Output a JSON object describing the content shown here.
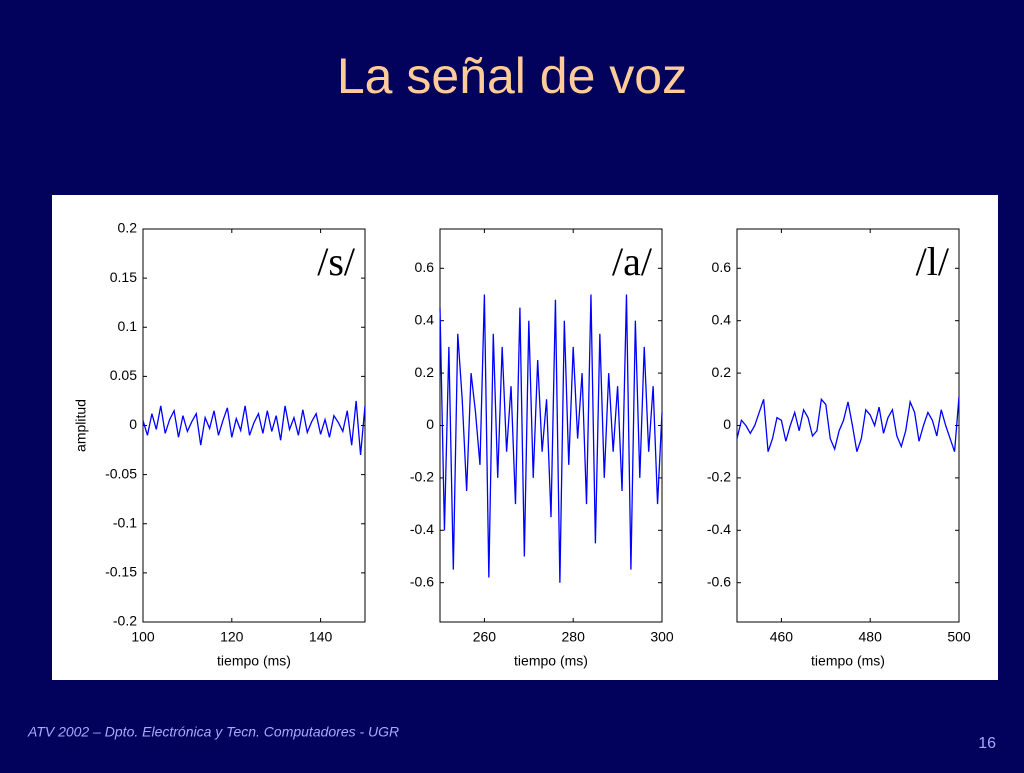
{
  "slide": {
    "title": "La señal de voz",
    "footer": "ATV 2002 – Dpto. Electrónica y Tecn. Computadores - UGR",
    "page_number": "16"
  },
  "chart_data": [
    {
      "type": "line",
      "annotation": "/s/",
      "xlabel": "tiempo (ms)",
      "ylabel": "amplitud",
      "xlim": [
        100,
        150
      ],
      "xticks": [
        100,
        120,
        140
      ],
      "ylim": [
        -0.2,
        0.2
      ],
      "yticks": [
        -0.2,
        -0.15,
        -0.1,
        -0.05,
        0,
        0.05,
        0.1,
        0.15,
        0.2
      ],
      "x": [
        100,
        101,
        102,
        103,
        104,
        105,
        106,
        107,
        108,
        109,
        110,
        111,
        112,
        113,
        114,
        115,
        116,
        117,
        118,
        119,
        120,
        121,
        122,
        123,
        124,
        125,
        126,
        127,
        128,
        129,
        130,
        131,
        132,
        133,
        134,
        135,
        136,
        137,
        138,
        139,
        140,
        141,
        142,
        143,
        144,
        145,
        146,
        147,
        148,
        149,
        150
      ],
      "series": [
        {
          "color": "#0000ff",
          "values": [
            0.005,
            -0.01,
            0.012,
            -0.004,
            0.02,
            -0.008,
            0.006,
            0.015,
            -0.012,
            0.01,
            -0.006,
            0.004,
            0.012,
            -0.02,
            0.008,
            -0.003,
            0.015,
            -0.01,
            0.005,
            0.018,
            -0.012,
            0.007,
            -0.005,
            0.02,
            -0.01,
            0.003,
            0.012,
            -0.008,
            0.015,
            -0.006,
            0.01,
            -0.015,
            0.02,
            -0.004,
            0.008,
            -0.01,
            0.016,
            -0.007,
            0.004,
            0.012,
            -0.009,
            0.006,
            -0.012,
            0.01,
            0.003,
            -0.006,
            0.015,
            -0.02,
            0.025,
            -0.03,
            0.02
          ]
        }
      ]
    },
    {
      "type": "line",
      "annotation": "/a/",
      "xlabel": "tiempo (ms)",
      "xlim": [
        250,
        300
      ],
      "xticks": [
        260,
        280,
        300
      ],
      "ylim": [
        -0.75,
        0.75
      ],
      "yticks": [
        -0.6,
        -0.4,
        -0.2,
        0,
        0.2,
        0.4,
        0.6
      ],
      "x": [
        250,
        251,
        252,
        253,
        254,
        255,
        256,
        257,
        258,
        259,
        260,
        261,
        262,
        263,
        264,
        265,
        266,
        267,
        268,
        269,
        270,
        271,
        272,
        273,
        274,
        275,
        276,
        277,
        278,
        279,
        280,
        281,
        282,
        283,
        284,
        285,
        286,
        287,
        288,
        289,
        290,
        291,
        292,
        293,
        294,
        295,
        296,
        297,
        298,
        299,
        300
      ],
      "series": [
        {
          "color": "#0000ff",
          "values": [
            0.45,
            -0.4,
            0.3,
            -0.55,
            0.35,
            0.1,
            -0.25,
            0.2,
            0.05,
            -0.15,
            0.5,
            -0.58,
            0.35,
            -0.2,
            0.3,
            -0.1,
            0.15,
            -0.3,
            0.45,
            -0.5,
            0.4,
            -0.2,
            0.25,
            -0.1,
            0.1,
            -0.35,
            0.48,
            -0.6,
            0.4,
            -0.15,
            0.3,
            -0.05,
            0.2,
            -0.3,
            0.5,
            -0.45,
            0.35,
            -0.2,
            0.2,
            -0.1,
            0.15,
            -0.25,
            0.5,
            -0.55,
            0.4,
            -0.2,
            0.3,
            -0.1,
            0.15,
            -0.3,
            0.05
          ]
        }
      ]
    },
    {
      "type": "line",
      "annotation": "/l/",
      "xlabel": "tiempo (ms)",
      "xlim": [
        450,
        500
      ],
      "xticks": [
        460,
        480,
        500
      ],
      "ylim": [
        -0.75,
        0.75
      ],
      "yticks": [
        -0.6,
        -0.4,
        -0.2,
        0,
        0.2,
        0.4,
        0.6
      ],
      "x": [
        450,
        451,
        452,
        453,
        454,
        455,
        456,
        457,
        458,
        459,
        460,
        461,
        462,
        463,
        464,
        465,
        466,
        467,
        468,
        469,
        470,
        471,
        472,
        473,
        474,
        475,
        476,
        477,
        478,
        479,
        480,
        481,
        482,
        483,
        484,
        485,
        486,
        487,
        488,
        489,
        490,
        491,
        492,
        493,
        494,
        495,
        496,
        497,
        498,
        499,
        500
      ],
      "series": [
        {
          "color": "#0000ff",
          "values": [
            -0.05,
            0.02,
            0.0,
            -0.03,
            0.0,
            0.05,
            0.1,
            -0.1,
            -0.05,
            0.03,
            0.02,
            -0.06,
            0.0,
            0.05,
            -0.02,
            0.06,
            0.03,
            -0.04,
            -0.02,
            0.1,
            0.08,
            -0.05,
            -0.09,
            -0.02,
            0.02,
            0.09,
            0.0,
            -0.1,
            -0.05,
            0.06,
            0.04,
            0.0,
            0.07,
            -0.03,
            0.03,
            0.06,
            -0.04,
            -0.08,
            -0.02,
            0.09,
            0.05,
            -0.06,
            0.0,
            0.05,
            0.02,
            -0.04,
            0.06,
            0.0,
            -0.05,
            -0.1,
            0.11
          ]
        }
      ]
    }
  ]
}
